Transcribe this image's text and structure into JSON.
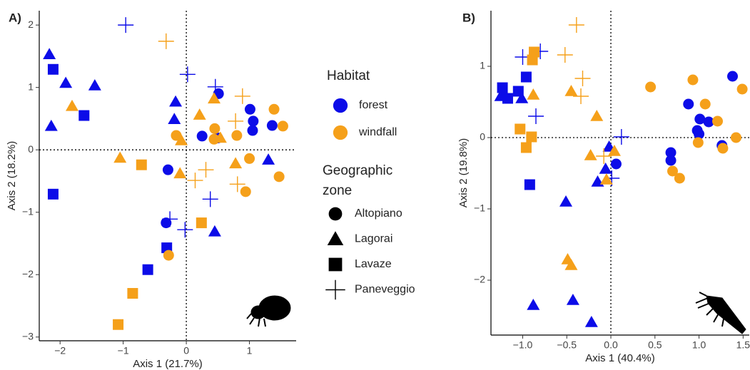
{
  "chart_data": [
    {
      "type": "scatter",
      "panel_label": "A)",
      "x_label": "Axis 1 (21.7%)",
      "y_label": "Axis 2 (18.2%)",
      "xlim": [
        -2.33,
        1.74
      ],
      "ylim": [
        -3.06,
        2.23
      ],
      "xticks": [
        {
          "value": -2,
          "label": "−2"
        },
        {
          "value": -1,
          "label": "−1"
        },
        0,
        1
      ],
      "yticks": [
        {
          "value": -3,
          "label": "−3"
        },
        {
          "value": -2,
          "label": "−2"
        },
        {
          "value": -1,
          "label": "−1"
        },
        0,
        1,
        2
      ],
      "zero_lines": true,
      "series": [
        {
          "habitat": "forest",
          "zone": "Altopiano",
          "x": [
            0.51,
            1.01,
            1.06,
            1.05,
            1.36,
            0.25,
            0.5,
            -0.29,
            -0.32
          ],
          "y": [
            0.9,
            0.65,
            0.46,
            0.31,
            0.39,
            0.22,
            0.19,
            -0.32,
            -1.17
          ]
        },
        {
          "habitat": "forest",
          "zone": "Lagorai",
          "x": [
            -2.17,
            -1.91,
            -1.45,
            -2.14,
            -0.17,
            -0.19,
            1.3,
            0.45
          ],
          "y": [
            1.53,
            1.07,
            1.03,
            0.38,
            0.77,
            0.49,
            -0.16,
            -1.31
          ]
        },
        {
          "habitat": "forest",
          "zone": "Lavaze",
          "x": [
            -2.11,
            -1.62,
            -2.11,
            -0.31,
            -0.61
          ],
          "y": [
            1.29,
            0.55,
            -0.71,
            -1.57,
            -1.92
          ]
        },
        {
          "habitat": "forest",
          "zone": "Paneveggio",
          "x": [
            -0.96,
            0.02,
            0.46,
            0.38,
            -0.26,
            -0.02
          ],
          "y": [
            2.0,
            1.21,
            1.01,
            -0.79,
            -1.11,
            -1.28
          ]
        },
        {
          "habitat": "windfall",
          "zone": "Altopiano",
          "x": [
            -0.16,
            0.45,
            0.8,
            1.39,
            1.53,
            1.0,
            0.94,
            1.47,
            -0.28,
            0.44
          ],
          "y": [
            0.23,
            0.34,
            0.23,
            0.65,
            0.38,
            -0.14,
            -0.67,
            -0.43,
            -1.69,
            0.17
          ]
        },
        {
          "habitat": "windfall",
          "zone": "Lagorai",
          "x": [
            -1.81,
            -1.05,
            -0.08,
            0.21,
            0.44,
            0.54,
            -0.1,
            0.78
          ],
          "y": [
            0.7,
            -0.13,
            0.15,
            0.56,
            0.82,
            0.19,
            -0.38,
            -0.22
          ]
        },
        {
          "habitat": "windfall",
          "zone": "Lavaze",
          "x": [
            -0.71,
            0.24,
            -0.85,
            -1.08
          ],
          "y": [
            -0.24,
            -1.17,
            -2.3,
            -2.8
          ]
        },
        {
          "habitat": "windfall",
          "zone": "Paneveggio",
          "x": [
            -0.32,
            0.89,
            0.78,
            0.31,
            0.14,
            0.81
          ],
          "y": [
            1.74,
            0.86,
            0.46,
            -0.32,
            -0.49,
            -0.55
          ]
        }
      ]
    },
    {
      "type": "scatter",
      "panel_label": "B)",
      "x_label": "Axis 1 (40.4%)",
      "y_label": "Axis 2 (19.8%)",
      "xlim": [
        -1.36,
        1.57
      ],
      "ylim": [
        -2.77,
        1.78
      ],
      "xticks": [
        {
          "value": -1,
          "label": "−1.0"
        },
        {
          "value": -0.5,
          "label": "−0.5"
        },
        {
          "value": 0,
          "label": "0.0"
        },
        0.5,
        {
          "value": 1,
          "label": "1.0"
        },
        1.5
      ],
      "yticks": [
        {
          "value": -2,
          "label": "−2"
        },
        {
          "value": -1,
          "label": "−1"
        },
        0,
        1
      ],
      "zero_lines": true,
      "series": [
        {
          "habitat": "forest",
          "zone": "Altopiano",
          "x": [
            1.38,
            0.88,
            1.01,
            1.11,
            0.98,
            1.0,
            0.68,
            0.68,
            1.26,
            0.06
          ],
          "y": [
            0.86,
            0.47,
            0.26,
            0.22,
            0.1,
            0.05,
            -0.21,
            -0.32,
            -0.11,
            -0.37
          ]
        },
        {
          "habitat": "forest",
          "zone": "Lagorai",
          "x": [
            -1.25,
            -1.01,
            -0.02,
            -0.06,
            -0.15,
            -0.51,
            -0.88,
            -0.43,
            -0.22
          ],
          "y": [
            0.58,
            0.55,
            -0.13,
            -0.44,
            -0.62,
            -0.9,
            -2.35,
            -2.28,
            -2.59
          ]
        },
        {
          "habitat": "forest",
          "zone": "Lavaze",
          "x": [
            -1.23,
            -1.17,
            -1.05,
            -0.96,
            -0.92
          ],
          "y": [
            0.7,
            0.55,
            0.65,
            0.85,
            -0.66
          ]
        },
        {
          "habitat": "forest",
          "zone": "Paneveggio",
          "x": [
            -1.0,
            -0.8,
            -0.85,
            0.12,
            0.01
          ],
          "y": [
            1.13,
            1.21,
            0.3,
            0.01,
            -0.57
          ]
        },
        {
          "habitat": "windfall",
          "zone": "Altopiano",
          "x": [
            0.45,
            0.93,
            1.07,
            1.21,
            1.49,
            1.42,
            0.99,
            1.27,
            0.7,
            0.78
          ],
          "y": [
            0.71,
            0.81,
            0.47,
            0.23,
            0.68,
            0.0,
            -0.07,
            -0.15,
            -0.47,
            -0.57
          ]
        },
        {
          "habitat": "windfall",
          "zone": "Lagorai",
          "x": [
            -0.88,
            -0.45,
            -0.16,
            -0.23,
            0.04,
            -0.05,
            -0.49,
            -0.45
          ],
          "y": [
            0.6,
            0.65,
            0.3,
            -0.25,
            -0.19,
            -0.59,
            -1.71,
            -1.79
          ]
        },
        {
          "habitat": "windfall",
          "zone": "Lavaze",
          "x": [
            -0.87,
            -0.89,
            -1.03,
            -0.9,
            -0.96
          ],
          "y": [
            1.2,
            1.09,
            0.12,
            0.01,
            -0.14
          ]
        },
        {
          "habitat": "windfall",
          "zone": "Paneveggio",
          "x": [
            -0.39,
            -0.52,
            -0.32,
            -0.34,
            -0.08
          ],
          "y": [
            1.58,
            1.16,
            0.83,
            0.58,
            -0.26
          ]
        }
      ]
    }
  ],
  "legend": {
    "habitat_title": "Habitat",
    "habitat": [
      {
        "name": "forest",
        "color": "#0c0ce8"
      },
      {
        "name": "windfall",
        "color": "#f5a01a"
      }
    ],
    "zone_title": [
      "Geographic",
      "zone"
    ],
    "zone": [
      {
        "name": "Altopiano",
        "shape": "circle"
      },
      {
        "name": "Lagorai",
        "shape": "triangle"
      },
      {
        "name": "Lavaze",
        "shape": "square"
      },
      {
        "name": "Paneveggio",
        "shape": "plus"
      }
    ]
  }
}
